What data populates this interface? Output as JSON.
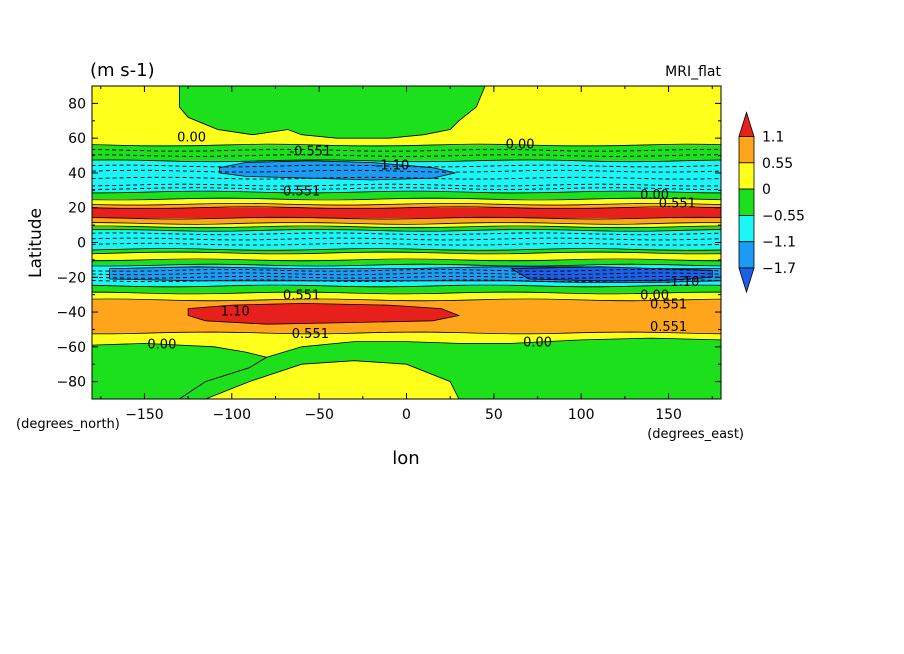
{
  "chart_data": {
    "type": "contour",
    "units_label": "(m s-1)",
    "dataset_label": "MRI_flat",
    "xlabel": "lon",
    "ylabel": "Latitude",
    "x_units": "(degrees_east)",
    "y_units": "(degrees_north)",
    "xlim": [
      -180,
      180
    ],
    "ylim": [
      -90,
      90
    ],
    "x_ticks": [
      -150,
      -100,
      -50,
      0,
      50,
      100,
      150
    ],
    "x_tick_labels": [
      "−150",
      "−100",
      "−50",
      "0",
      "50",
      "100",
      "150"
    ],
    "y_ticks": [
      80,
      60,
      40,
      20,
      0,
      -20,
      -40,
      -60,
      -80
    ],
    "y_tick_labels": [
      "80",
      "60",
      "40",
      "20",
      "0",
      "−20",
      "−40",
      "−60",
      "−80"
    ],
    "colorbar": {
      "labels": [
        "1.1",
        "0.55",
        "0",
        "−0.55",
        "−1.1",
        "−1.7"
      ],
      "bands": [
        {
          "color": "#e8201c"
        },
        {
          "color": "#ffa51c"
        },
        {
          "color": "#ffff1c"
        },
        {
          "color": "#1ce01c"
        },
        {
          "color": "#1cf5f5"
        },
        {
          "color": "#1c9bf5"
        },
        {
          "color": "#1c60e8"
        }
      ]
    },
    "latitude_bands": [
      {
        "lat_top": 90,
        "lat_bottom": 56,
        "level": "yellow"
      },
      {
        "lat_top": 56,
        "lat_bottom": 47,
        "level": "green"
      },
      {
        "lat_top": 47,
        "lat_bottom": 29,
        "level": "cyan"
      },
      {
        "lat_top": 29,
        "lat_bottom": 25,
        "level": "green"
      },
      {
        "lat_top": 25,
        "lat_bottom": 22,
        "level": "yellow"
      },
      {
        "lat_top": 22,
        "lat_bottom": 20,
        "level": "orange"
      },
      {
        "lat_top": 20,
        "lat_bottom": 14,
        "level": "red"
      },
      {
        "lat_top": 14,
        "lat_bottom": 11,
        "level": "orange"
      },
      {
        "lat_top": 11,
        "lat_bottom": 9,
        "level": "yellow"
      },
      {
        "lat_top": 9,
        "lat_bottom": 7,
        "level": "green"
      },
      {
        "lat_top": 7,
        "lat_bottom": -4,
        "level": "cyan"
      },
      {
        "lat_top": -4,
        "lat_bottom": -6,
        "level": "green"
      },
      {
        "lat_top": -6,
        "lat_bottom": -10,
        "level": "yellow"
      },
      {
        "lat_top": -10,
        "lat_bottom": -13,
        "level": "green"
      },
      {
        "lat_top": -13,
        "lat_bottom": -25,
        "level": "cyan"
      },
      {
        "lat_top": -25,
        "lat_bottom": -29,
        "level": "green"
      },
      {
        "lat_top": -29,
        "lat_bottom": -33,
        "level": "yellow"
      },
      {
        "lat_top": -33,
        "lat_bottom": -52,
        "level": "orange"
      },
      {
        "lat_top": -52,
        "lat_bottom": -90,
        "level": "yellow"
      }
    ],
    "regions": [
      {
        "level": "green",
        "lonlat": [
          [
            -130,
            90
          ],
          [
            -130,
            83
          ],
          [
            -112,
            75
          ],
          [
            -88,
            68
          ],
          [
            -68,
            65
          ],
          [
            -88,
            62
          ],
          [
            -108,
            65
          ],
          [
            -125,
            72
          ],
          [
            -130,
            78
          ]
        ]
      },
      {
        "level": "green",
        "lonlat": [
          [
            -130,
            90
          ],
          [
            -130,
            78
          ],
          [
            -125,
            72
          ],
          [
            -108,
            65
          ],
          [
            -88,
            62
          ],
          [
            -68,
            65
          ],
          [
            -60,
            62
          ],
          [
            -40,
            60
          ],
          [
            -10,
            60
          ],
          [
            10,
            62
          ],
          [
            25,
            65
          ],
          [
            30,
            70
          ],
          [
            40,
            78
          ],
          [
            45,
            90
          ]
        ]
      },
      {
        "level": "blue",
        "lonlat": [
          [
            -107,
            43
          ],
          [
            -92,
            46
          ],
          [
            -55,
            47
          ],
          [
            -20,
            46
          ],
          [
            15,
            43
          ],
          [
            28,
            40
          ],
          [
            15,
            37
          ],
          [
            -20,
            36
          ],
          [
            -55,
            37
          ],
          [
            -92,
            38
          ],
          [
            -107,
            40
          ]
        ]
      },
      {
        "level": "blue",
        "lonlat": [
          [
            -170,
            -15
          ],
          [
            -120,
            -14
          ],
          [
            -60,
            -15
          ],
          [
            0,
            -15
          ],
          [
            50,
            -14
          ],
          [
            100,
            -14
          ],
          [
            140,
            -15
          ],
          [
            180,
            -15
          ],
          [
            180,
            -22
          ],
          [
            140,
            -23
          ],
          [
            100,
            -23
          ],
          [
            60,
            -22
          ],
          [
            0,
            -22
          ],
          [
            -60,
            -22
          ],
          [
            -120,
            -22
          ],
          [
            -170,
            -21
          ]
        ]
      },
      {
        "level": "darkblue",
        "lonlat": [
          [
            60,
            -15
          ],
          [
            110,
            -14
          ],
          [
            145,
            -15
          ],
          [
            175,
            -16
          ],
          [
            175,
            -20
          ],
          [
            145,
            -22
          ],
          [
            110,
            -22
          ],
          [
            70,
            -21
          ]
        ]
      },
      {
        "level": "red",
        "lonlat": [
          [
            -125,
            -38
          ],
          [
            -100,
            -36
          ],
          [
            -60,
            -35
          ],
          [
            -10,
            -36
          ],
          [
            20,
            -38
          ],
          [
            30,
            -42
          ],
          [
            15,
            -45
          ],
          [
            -30,
            -46
          ],
          [
            -80,
            -47
          ],
          [
            -115,
            -45
          ],
          [
            -125,
            -42
          ]
        ]
      },
      {
        "level": "green",
        "lonlat": [
          [
            -180,
            -90
          ],
          [
            -180,
            -59
          ],
          [
            -150,
            -58
          ],
          [
            -110,
            -60
          ],
          [
            -92,
            -63
          ],
          [
            -80,
            -66
          ],
          [
            -90,
            -72
          ],
          [
            -115,
            -80
          ],
          [
            -130,
            -90
          ]
        ]
      },
      {
        "level": "green",
        "lonlat": [
          [
            -130,
            -90
          ],
          [
            -115,
            -80
          ],
          [
            -90,
            -72
          ],
          [
            -80,
            -66
          ],
          [
            -60,
            -60
          ],
          [
            -30,
            -57
          ],
          [
            0,
            -57
          ],
          [
            30,
            -58
          ],
          [
            60,
            -58
          ],
          [
            100,
            -56
          ],
          [
            140,
            -55
          ],
          [
            180,
            -56
          ],
          [
            180,
            -90
          ],
          [
            30,
            -90
          ],
          [
            25,
            -80
          ],
          [
            0,
            -70
          ],
          [
            -30,
            -68
          ],
          [
            -60,
            -70
          ],
          [
            -90,
            -80
          ],
          [
            -115,
            -90
          ]
        ]
      }
    ],
    "contour_lines": [
      {
        "style": "solid",
        "lats": [
          56,
          47,
          29,
          25,
          22,
          20,
          14,
          11,
          9,
          7,
          -4,
          -6,
          -10,
          -13,
          -25,
          -29,
          -33,
          -52
        ]
      },
      {
        "style": "dashed",
        "lats": [
          53,
          50,
          44,
          41,
          37,
          33,
          31,
          5,
          2,
          -1,
          -16,
          -18,
          -20,
          -22
        ]
      }
    ],
    "contour_labels": [
      {
        "text": "0.00",
        "lon": -123,
        "lat": 61
      },
      {
        "text": "0.00",
        "lon": 65,
        "lat": 57
      },
      {
        "text": "0.00",
        "lon": 75,
        "lat": -57
      },
      {
        "text": "0.00",
        "lon": -140,
        "lat": -58
      },
      {
        "text": "-0.551",
        "lon": -55,
        "lat": 53
      },
      {
        "text": "-1.10",
        "lon": -8,
        "lat": 45
      },
      {
        "text": "0.551",
        "lon": -60,
        "lat": 30
      },
      {
        "text": "0.551",
        "lon": -60,
        "lat": -30
      },
      {
        "text": "0.551",
        "lon": -55,
        "lat": -52
      },
      {
        "text": "1.10",
        "lon": -98,
        "lat": -39
      },
      {
        "text": "0.551",
        "lon": 150,
        "lat": -35
      },
      {
        "text": "0.551",
        "lon": 150,
        "lat": -48
      },
      {
        "text": "0.00",
        "lon": 142,
        "lat": 28
      },
      {
        "text": "0.00",
        "lon": 142,
        "lat": -30
      },
      {
        "text": "-1.10",
        "lon": 158,
        "lat": -22
      },
      {
        "text": "0.551",
        "lon": 155,
        "lat": 23
      }
    ]
  }
}
